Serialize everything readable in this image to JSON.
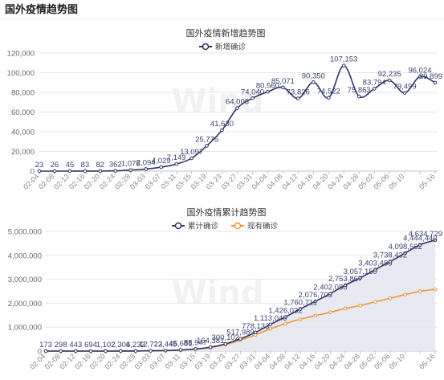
{
  "page": {
    "title": "国外疫情趋势图",
    "watermark": "Wind"
  },
  "chart_data": [
    {
      "type": "line",
      "title": "国外疫情新增趋势图",
      "categories": [
        "02-04",
        "02-08",
        "02-12",
        "02-16",
        "02-20",
        "02-24",
        "02-28",
        "03-03",
        "03-07",
        "03-11",
        "03-15",
        "03-19",
        "03-23",
        "03-27",
        "03-31",
        "04-04",
        "04-08",
        "04-12",
        "04-16",
        "04-20",
        "04-24",
        "04-28",
        "05-02",
        "05-06",
        "05-10",
        "",
        "05-16"
      ],
      "ylim": [
        0,
        120000
      ],
      "yticks": [
        0,
        20000,
        40000,
        60000,
        80000,
        100000,
        120000
      ],
      "grid": true,
      "legend": "top-center",
      "smooth": true,
      "series": [
        {
          "name": "新增确诊",
          "color": "#2b3467",
          "data_labels": true,
          "values": [
            23,
            26,
            45,
            83,
            82,
            362,
            1078,
            2094,
            4029,
            7149,
            13097,
            25775,
            41630,
            64006,
            74040,
            80560,
            85071,
            73826,
            90350,
            74522,
            107153,
            75863,
            83794,
            92235,
            79499,
            96024,
            89899
          ]
        }
      ]
    },
    {
      "type": "area",
      "title": "国外疫情累计趋势图",
      "categories": [
        "02-04",
        "02-08",
        "02-12",
        "02-16",
        "02-20",
        "02-24",
        "02-28",
        "03-03",
        "03-07",
        "03-11",
        "03-15",
        "03-19",
        "03-23",
        "03-27",
        "03-31",
        "04-04",
        "04-08",
        "04-12",
        "04-16",
        "04-20",
        "04-24",
        "04-28",
        "05-02",
        "05-06",
        "05-10",
        "",
        "05-16"
      ],
      "ylim": [
        0,
        5000000
      ],
      "yticks": [
        0,
        1000000,
        2000000,
        3000000,
        4000000,
        5000000
      ],
      "grid": true,
      "legend": "top-center",
      "smooth": true,
      "series": [
        {
          "name": "累计确诊",
          "color": "#2b3467",
          "area_color": "#e6e7ef",
          "data_labels": true,
          "values": [
            173,
            298,
            443,
            694,
            1102,
            2306,
            4232,
            12722,
            23445,
            45681,
            88947,
            164381,
            300102,
            517989,
            778133,
            1113046,
            1426032,
            1760711,
            2076703,
            2402080,
            2753867,
            3057150,
            3403486,
            3738432,
            4098562,
            4444440,
            4634729
          ]
        },
        {
          "name": "现有确诊",
          "color": "#f2913a",
          "data_labels": false,
          "values": [
            170,
            285,
            420,
            640,
            980,
            2150,
            3950,
            11600,
            21300,
            41800,
            81200,
            148000,
            272000,
            462000,
            680000,
            930000,
            1150000,
            1330000,
            1480000,
            1620000,
            1780000,
            1900000,
            2060000,
            2200000,
            2360000,
            2500000,
            2580000
          ]
        }
      ]
    }
  ]
}
